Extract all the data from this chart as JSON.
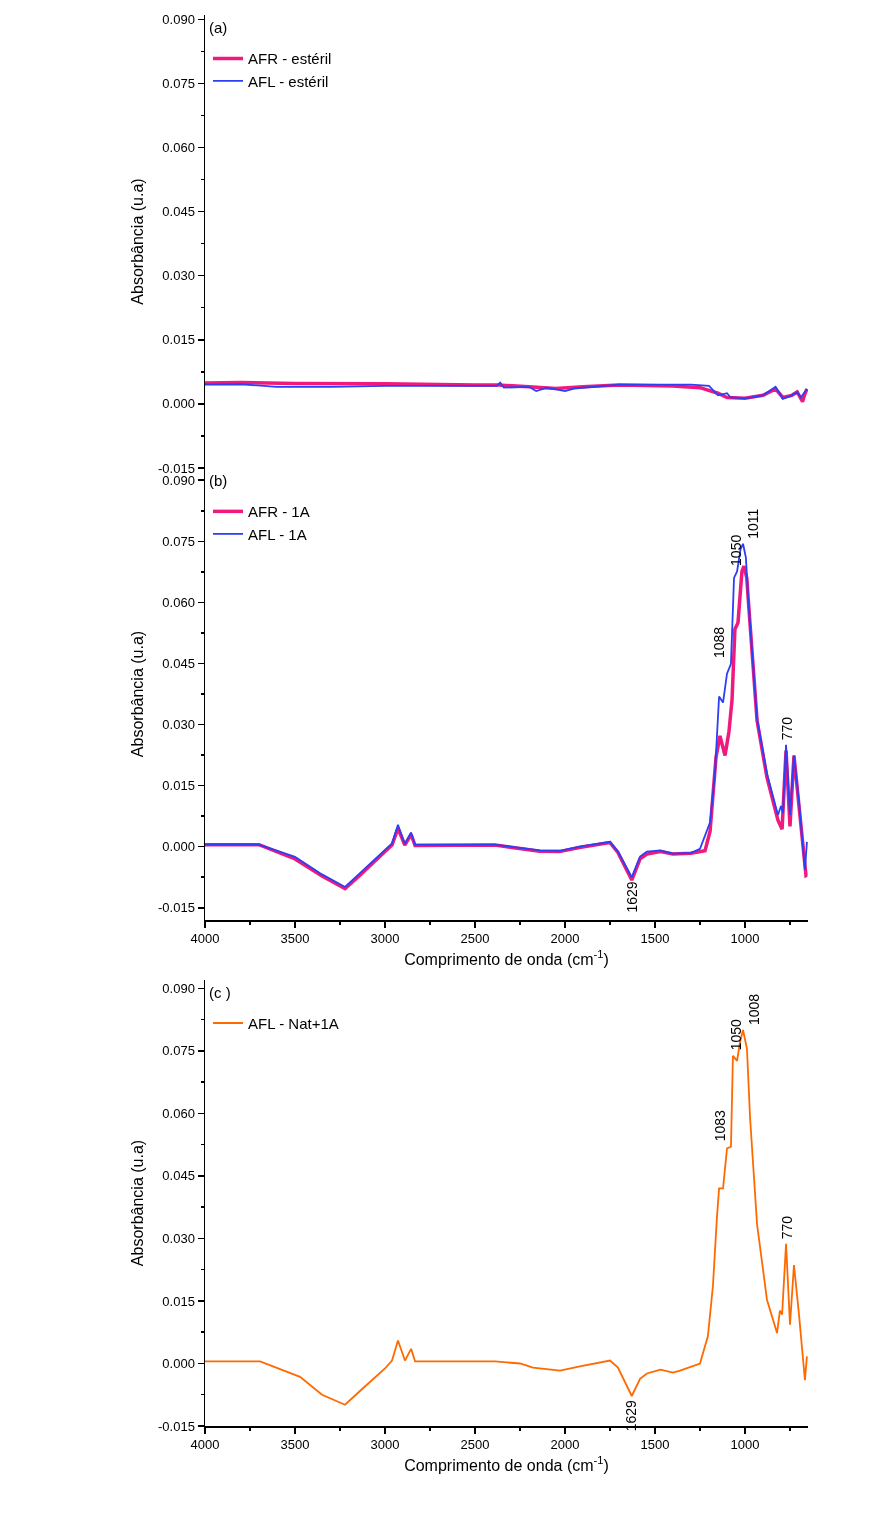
{
  "chart_data": [
    {
      "type": "line",
      "ylabel": "Absorbância (u.a)",
      "annotations": [
        "(a)"
      ],
      "xlim": [
        4000,
        650
      ],
      "ylim": [
        -0.015,
        0.091
      ],
      "xticks": [
        4000,
        {
          "value": 3750,
          "label": null
        },
        3500,
        {
          "value": 3250,
          "label": null
        },
        3000,
        {
          "value": 2750,
          "label": null
        },
        2500,
        {
          "value": 2250,
          "label": null
        },
        2000,
        {
          "value": 1750,
          "label": null
        },
        1500,
        {
          "value": 1250,
          "label": null
        },
        1000,
        {
          "value": 750,
          "label": null
        }
      ],
      "yticks": [
        {
          "value": -0.015,
          "label": "-0.015"
        },
        {
          "value": -0.0075,
          "label": null
        },
        {
          "value": 0,
          "label": "0.000"
        },
        {
          "value": 0.0075,
          "label": null
        },
        {
          "value": 0.015,
          "label": "0.015"
        },
        {
          "value": 0.0225,
          "label": null
        },
        {
          "value": 0.03,
          "label": "0.030"
        },
        {
          "value": 0.0375,
          "label": null
        },
        {
          "value": 0.045,
          "label": "0.045"
        },
        {
          "value": 0.0525,
          "label": null
        },
        {
          "value": 0.06,
          "label": "0.060"
        },
        {
          "value": 0.0675,
          "label": null
        },
        {
          "value": 0.075,
          "label": "0.075"
        },
        {
          "value": 0.0825,
          "label": null
        },
        {
          "value": 0.09,
          "label": "0.090"
        }
      ],
      "tick_labels": "y",
      "legend": "top left",
      "grid": false,
      "marker": "none",
      "line_style": "solid",
      "series": [
        {
          "name": "AFR - estéril",
          "color": "#f0197d",
          "x": [
            4000,
            3800,
            3500,
            3000,
            2500,
            2370,
            2200,
            2050,
            1900,
            1700,
            1400,
            1250,
            1150,
            1100,
            1000,
            900,
            830,
            790,
            740,
            710,
            680,
            670,
            656
          ],
          "values": [
            0.0049,
            0.005,
            0.0048,
            0.0047,
            0.0044,
            0.0044,
            0.004,
            0.0036,
            0.004,
            0.0044,
            0.0042,
            0.0038,
            0.0025,
            0.0015,
            0.0013,
            0.002,
            0.0035,
            0.0015,
            0.002,
            0.0028,
            0.0005,
            0.002,
            0.0035
          ]
        },
        {
          "name": "AFL - estéril",
          "color": "#2b3ff5",
          "x": [
            4000,
            3800,
            3600,
            3300,
            3000,
            2500,
            2380,
            2360,
            2340,
            2200,
            2160,
            2100,
            2000,
            1950,
            1700,
            1300,
            1200,
            1150,
            1100,
            1080,
            1000,
            900,
            830,
            790,
            740,
            710,
            690,
            656
          ],
          "values": [
            0.0045,
            0.0046,
            0.004,
            0.004,
            0.0042,
            0.0042,
            0.0042,
            0.005,
            0.0038,
            0.004,
            0.003,
            0.0038,
            0.003,
            0.0036,
            0.0045,
            0.0045,
            0.0042,
            0.002,
            0.0025,
            0.0015,
            0.0013,
            0.002,
            0.004,
            0.0012,
            0.002,
            0.0028,
            0.0015,
            0.0035
          ]
        }
      ]
    },
    {
      "type": "line",
      "xlabel": "Comprimento de onda (cm$^{-1}$)",
      "ylabel": "Absorbância (u.a)",
      "annotations": [
        "(b)",
        {
          "text": "1088",
          "x": 1088,
          "y": 0.045
        },
        {
          "text": "1050",
          "x": 1050,
          "y": 0.0676
        },
        {
          "text": "1011",
          "x": 1011,
          "y": 0.0744
        },
        {
          "text": "770",
          "x": 770,
          "y": 0.025
        },
        {
          "text": "1629",
          "x": 1629,
          "y": -0.0075
        }
      ],
      "xlim": [
        4000,
        650
      ],
      "ylim": [
        -0.018,
        0.093
      ],
      "xticks": [
        4000,
        {
          "value": 3750,
          "label": null
        },
        3500,
        {
          "value": 3250,
          "label": null
        },
        3000,
        {
          "value": 2750,
          "label": null
        },
        2500,
        {
          "value": 2250,
          "label": null
        },
        2000,
        {
          "value": 1750,
          "label": null
        },
        1500,
        {
          "value": 1250,
          "label": null
        },
        1000,
        {
          "value": 750,
          "label": null
        }
      ],
      "yticks": [
        {
          "value": -0.015,
          "label": "-0.015"
        },
        {
          "value": -0.0075,
          "label": null
        },
        {
          "value": 0,
          "label": "0.000"
        },
        {
          "value": 0.0075,
          "label": null
        },
        {
          "value": 0.015,
          "label": "0.015"
        },
        {
          "value": 0.0225,
          "label": null
        },
        {
          "value": 0.03,
          "label": "0.030"
        },
        {
          "value": 0.0375,
          "label": null
        },
        {
          "value": 0.045,
          "label": "0.045"
        },
        {
          "value": 0.0525,
          "label": null
        },
        {
          "value": 0.06,
          "label": "0.060"
        },
        {
          "value": 0.0675,
          "label": null
        },
        {
          "value": 0.075,
          "label": "0.075"
        },
        {
          "value": 0.0825,
          "label": null
        },
        {
          "value": 0.09,
          "label": "0.090"
        }
      ],
      "legend": "top left",
      "grid": false,
      "marker": "none",
      "line_style": "solid",
      "series": [
        {
          "name": "AFR - 1A",
          "color": "#f0197d",
          "x": [
            4000,
            3700,
            3500,
            3350,
            3222,
            3139,
            3000,
            2961,
            2928,
            2890,
            2855,
            2833,
            2390,
            2140,
            2030,
            1920,
            1750,
            1706,
            1629,
            1583,
            1545,
            1470,
            1400,
            1300,
            1222,
            1194,
            1161,
            1139,
            1111,
            1089,
            1072,
            1056,
            1039,
            1017,
            1006,
            990,
            983,
            933,
            878,
            817,
            794,
            772,
            750,
            728,
            700,
            661,
            656
          ],
          "values": [
            0.0005,
            0.0005,
            -0.003,
            -0.0072,
            -0.0103,
            -0.007,
            -0.0012,
            0.0004,
            0.0045,
            0.0004,
            0.003,
            0.0003,
            0.0004,
            -0.0011,
            -0.0012,
            -0.0002,
            0.001,
            -0.0014,
            -0.0082,
            -0.003,
            -0.0018,
            -0.0012,
            -0.0018,
            -0.0016,
            -0.001,
            0.0038,
            0.022,
            0.0272,
            0.0224,
            0.0283,
            0.0361,
            0.0534,
            0.055,
            0.0676,
            0.0689,
            0.066,
            0.0614,
            0.031,
            0.017,
            0.0065,
            0.0043,
            0.0236,
            0.005,
            0.0224,
            0.01,
            -0.0071,
            -0.007
          ]
        },
        {
          "name": "AFL - 1A",
          "color": "#2b3ff5",
          "x": [
            4000,
            3700,
            3500,
            3350,
            3222,
            3139,
            3000,
            2961,
            2928,
            2890,
            2855,
            2833,
            2390,
            2140,
            2030,
            1920,
            1750,
            1706,
            1629,
            1583,
            1545,
            1470,
            1400,
            1300,
            1250,
            1194,
            1167,
            1144,
            1122,
            1100,
            1078,
            1061,
            1044,
            1025,
            1011,
            995,
            983,
            933,
            878,
            817,
            800,
            789,
            772,
            750,
            728,
            700,
            667,
            656
          ],
          "values": [
            0.0005,
            0.0005,
            -0.0025,
            -0.0068,
            -0.0099,
            -0.0065,
            -0.0008,
            0.0008,
            0.0054,
            0.0007,
            0.0035,
            0.0005,
            0.0005,
            -0.0009,
            -0.001,
            0,
            0.0012,
            -0.0012,
            -0.0075,
            -0.0024,
            -0.0012,
            -0.0009,
            -0.0017,
            -0.0015,
            -0.0005,
            0.006,
            0.018,
            0.0369,
            0.0354,
            0.0425,
            0.0449,
            0.066,
            0.0676,
            0.073,
            0.0744,
            0.071,
            0.0614,
            0.0314,
            0.018,
            0.0078,
            0.01,
            0.0083,
            0.025,
            0.0078,
            0.0224,
            0.011,
            -0.0057,
            0.0012
          ]
        }
      ]
    },
    {
      "type": "line",
      "xlabel": "Comprimento de onda (cm$^{-1}$)",
      "ylabel": "Absorbância (u.a)",
      "annotations": [
        "(c )",
        {
          "text": "1083",
          "x": 1083,
          "y": 0.052
        },
        {
          "text": "1050",
          "x": 1050,
          "y": 0.0738
        },
        {
          "text": "1008",
          "x": 1008,
          "y": 0.08
        },
        {
          "text": "770",
          "x": 770,
          "y": 0.0287
        },
        {
          "text": "1629",
          "x": 1629,
          "y": -0.0078
        }
      ],
      "xlim": [
        4000,
        650
      ],
      "ylim": [
        -0.015,
        0.092
      ],
      "xticks": [
        4000,
        {
          "value": 3750,
          "label": null
        },
        3500,
        {
          "value": 3250,
          "label": null
        },
        3000,
        {
          "value": 2750,
          "label": null
        },
        2500,
        {
          "value": 2250,
          "label": null
        },
        2000,
        {
          "value": 1750,
          "label": null
        },
        1500,
        {
          "value": 1250,
          "label": null
        },
        1000,
        {
          "value": 750,
          "label": null
        }
      ],
      "yticks": [
        {
          "value": -0.015,
          "label": "-0.015"
        },
        {
          "value": -0.0075,
          "label": null
        },
        {
          "value": 0,
          "label": "0.000"
        },
        {
          "value": 0.0075,
          "label": null
        },
        {
          "value": 0.015,
          "label": "0.015"
        },
        {
          "value": 0.0225,
          "label": null
        },
        {
          "value": 0.03,
          "label": "0.030"
        },
        {
          "value": 0.0375,
          "label": null
        },
        {
          "value": 0.045,
          "label": "0.045"
        },
        {
          "value": 0.0525,
          "label": null
        },
        {
          "value": 0.06,
          "label": "0.060"
        },
        {
          "value": 0.0675,
          "label": null
        },
        {
          "value": 0.075,
          "label": "0.075"
        },
        {
          "value": 0.0825,
          "label": null
        },
        {
          "value": 0.09,
          "label": "0.090"
        }
      ],
      "legend": "top left",
      "grid": false,
      "marker": "none",
      "line_style": "solid",
      "series": [
        {
          "name": "AFL - Nat+1A",
          "color": "#ff6a00",
          "x": [
            4000,
            3694,
            3472,
            3350,
            3222,
            3139,
            3000,
            2961,
            2928,
            2889,
            2855,
            2833,
            2390,
            2250,
            2178,
            2028,
            1917,
            1750,
            1706,
            1629,
            1583,
            1545,
            1470,
            1400,
            1361,
            1250,
            1206,
            1178,
            1156,
            1144,
            1122,
            1100,
            1078,
            1067,
            1044,
            1028,
            1011,
            989,
            972,
            933,
            878,
            822,
            806,
            794,
            772,
            750,
            728,
            700,
            667,
            656
          ],
          "values": [
            0.0005,
            0.0005,
            -0.0032,
            -0.0075,
            -0.0099,
            -0.0066,
            -0.0012,
            0.0007,
            0.0055,
            0.0007,
            0.0035,
            0.0005,
            0.0005,
            0,
            -0.001,
            -0.0017,
            -0.0007,
            0.0007,
            -0.001,
            -0.0078,
            -0.0037,
            -0.0024,
            -0.0015,
            -0.0022,
            -0.0017,
            0,
            0.0066,
            0.0187,
            0.035,
            0.042,
            0.042,
            0.0516,
            0.052,
            0.0738,
            0.0726,
            0.077,
            0.08,
            0.0755,
            0.059,
            0.0334,
            0.0153,
            0.0073,
            0.0127,
            0.0117,
            0.0287,
            0.0093,
            0.0236,
            0.0117,
            -0.004,
            0.0017
          ]
        }
      ]
    }
  ]
}
